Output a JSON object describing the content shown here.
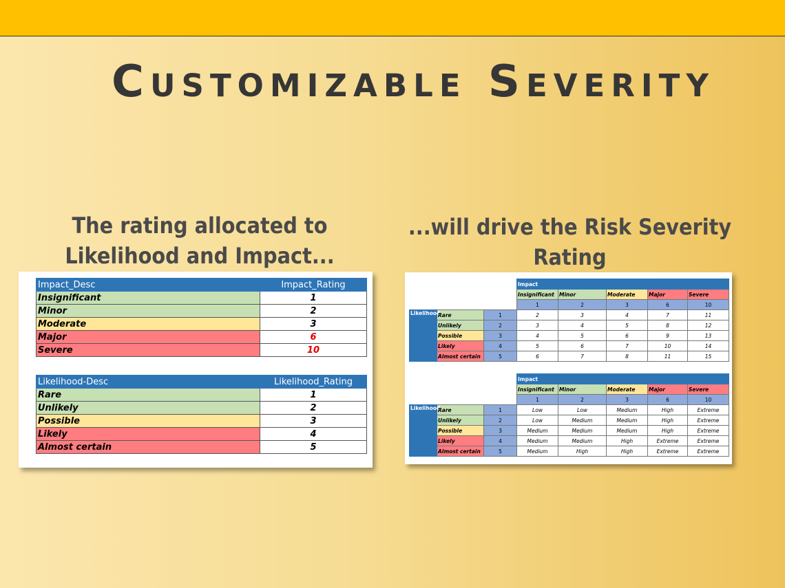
{
  "title": "Customizable Severity",
  "left_caption": "The rating allocated to Likelihood and Impact...",
  "right_caption": "...will drive the Risk Severity Rating",
  "impact_table": {
    "header": [
      "Impact_Desc",
      "Impact_Rating"
    ],
    "rows": [
      [
        "Insignificant",
        1
      ],
      [
        "Minor",
        2
      ],
      [
        "Moderate",
        3
      ],
      [
        "Major",
        6
      ],
      [
        "Severe",
        10
      ]
    ]
  },
  "likelihood_table": {
    "header": [
      "Likelihood-Desc",
      "Likelihood_Rating"
    ],
    "rows": [
      [
        "Rare",
        1
      ],
      [
        "Unlikely",
        2
      ],
      [
        "Possible",
        3
      ],
      [
        "Likely",
        4
      ],
      [
        "Almost certain",
        5
      ]
    ]
  },
  "score_matrix": {
    "impact_label": "Impact",
    "likelihood_label": "Likelihood",
    "impact_names": [
      "Insignificant",
      "Minor",
      "Moderate",
      "Major",
      "Severe"
    ],
    "impact_ratings": [
      1,
      2,
      3,
      6,
      10
    ],
    "likelihood_names": [
      "Rare",
      "Unlikely",
      "Possible",
      "Likely",
      "Almost certain"
    ],
    "likelihood_ratings": [
      1,
      2,
      3,
      4,
      5
    ],
    "cells": [
      [
        2,
        3,
        4,
        7,
        11
      ],
      [
        3,
        4,
        5,
        8,
        12
      ],
      [
        4,
        5,
        6,
        9,
        13
      ],
      [
        5,
        6,
        7,
        10,
        14
      ],
      [
        6,
        7,
        8,
        11,
        15
      ]
    ]
  },
  "rating_matrix": {
    "impact_label": "Impact",
    "likelihood_label": "Likelihood",
    "impact_names": [
      "Insignificant",
      "Minor",
      "Moderate",
      "Major",
      "Severe"
    ],
    "impact_ratings": [
      1,
      2,
      3,
      6,
      10
    ],
    "likelihood_names": [
      "Rare",
      "Unlikely",
      "Possible",
      "Likely",
      "Almost certain"
    ],
    "likelihood_ratings": [
      1,
      2,
      3,
      4,
      5
    ],
    "cells": [
      [
        "Low",
        "Low",
        "Medium",
        "High",
        "Extreme"
      ],
      [
        "Low",
        "Medium",
        "Medium",
        "High",
        "Extreme"
      ],
      [
        "Medium",
        "Medium",
        "Medium",
        "High",
        "Extreme"
      ],
      [
        "Medium",
        "Medium",
        "High",
        "Extreme",
        "Extreme"
      ],
      [
        "Medium",
        "High",
        "High",
        "Extreme",
        "Extreme"
      ]
    ]
  }
}
